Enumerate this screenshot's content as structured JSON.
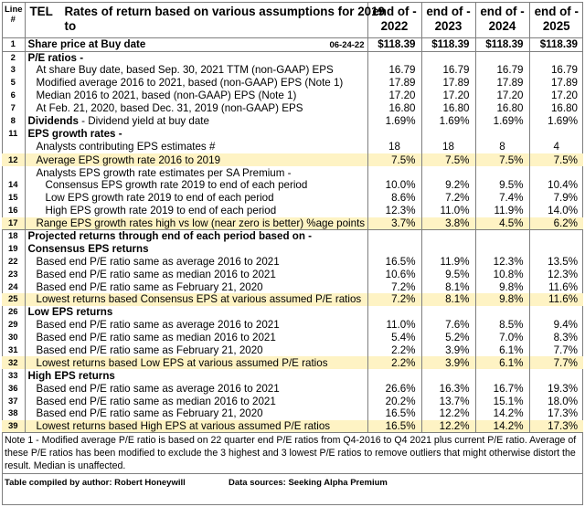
{
  "header": {
    "line_label": "Line #",
    "ticker": "TEL",
    "title_line1": "Rates of return based on various assumptions for 2019",
    "title_line2": "to",
    "columns": [
      {
        "top": "end of -",
        "year": "2022"
      },
      {
        "top": "end of -",
        "year": "2023"
      },
      {
        "top": "end of -",
        "year": "2024"
      },
      {
        "top": "end of -",
        "year": "2025"
      }
    ]
  },
  "rows": [
    {
      "n": "1",
      "label": "Share price at Buy date",
      "date": "06-24-22",
      "v": [
        "$118.39",
        "$118.39",
        "$118.39",
        "$118.39"
      ]
    },
    {
      "n": "2",
      "label": "P/E ratios -",
      "v": [
        "",
        "",
        "",
        ""
      ]
    },
    {
      "n": "3",
      "label": "At share Buy date, based Sep. 30, 2021 TTM (non-GAAP) EPS",
      "v": [
        "16.79",
        "16.79",
        "16.79",
        "16.79"
      ]
    },
    {
      "n": "5",
      "label": "Modified average 2016 to 2021, based (non-GAAP) EPS  (Note 1)",
      "v": [
        "17.89",
        "17.89",
        "17.89",
        "17.89"
      ]
    },
    {
      "n": "6",
      "label": "Median 2016 to 2021, based (non-GAAP) EPS  (Note 1)",
      "v": [
        "17.20",
        "17.20",
        "17.20",
        "17.20"
      ]
    },
    {
      "n": "7",
      "label": "At Feb. 21, 2020, based Dec. 31, 2019 (non-GAAP) EPS",
      "v": [
        "16.80",
        "16.80",
        "16.80",
        "16.80"
      ]
    },
    {
      "n": "8",
      "label": "Dividends",
      "label_extra": " -  Dividend yield at buy date",
      "v": [
        "1.69%",
        "1.69%",
        "1.69%",
        "1.69%"
      ]
    },
    {
      "n": "11",
      "label": "EPS growth rates -",
      "v": [
        "",
        "",
        "",
        ""
      ]
    },
    {
      "n": "",
      "label": "Analysts contributing EPS estimates #",
      "v": [
        "18",
        "18",
        "8",
        "4"
      ]
    },
    {
      "n": "12",
      "label": "Average EPS growth rate 2016 to 2019",
      "v": [
        "7.5%",
        "7.5%",
        "7.5%",
        "7.5%"
      ]
    },
    {
      "n": "",
      "label": "Analysts EPS growth rate estimates per SA Premium -",
      "v": [
        "",
        "",
        "",
        ""
      ]
    },
    {
      "n": "14",
      "label": "Consensus EPS growth rate 2019 to end of each period",
      "v": [
        "10.0%",
        "9.2%",
        "9.5%",
        "10.4%"
      ]
    },
    {
      "n": "15",
      "label": "Low EPS growth rate 2019 to end of each period",
      "v": [
        "8.6%",
        "7.2%",
        "7.4%",
        "7.9%"
      ]
    },
    {
      "n": "16",
      "label": "High EPS growth rate 2019 to end of each period",
      "v": [
        "12.3%",
        "11.0%",
        "11.9%",
        "14.0%"
      ]
    },
    {
      "n": "17",
      "label": "Range EPS growth rates high vs low (near zero is better) %age points",
      "v": [
        "3.7%",
        "3.8%",
        "4.5%",
        "6.2%"
      ]
    },
    {
      "n": "18",
      "label": "Projected returns through end of each period based on -",
      "v": [
        "",
        "",
        "",
        ""
      ]
    },
    {
      "n": "19",
      "label": "Consensus EPS returns",
      "v": [
        "",
        "",
        "",
        ""
      ]
    },
    {
      "n": "22",
      "label": "Based end P/E ratio same as average 2016 to 2021",
      "v": [
        "16.5%",
        "11.9%",
        "12.3%",
        "13.5%"
      ]
    },
    {
      "n": "23",
      "label": "Based end P/E ratio same as median 2016 to 2021",
      "v": [
        "10.6%",
        "9.5%",
        "10.8%",
        "12.3%"
      ]
    },
    {
      "n": "24",
      "label": "Based end P/E ratio same as February 21, 2020",
      "v": [
        "7.2%",
        "8.1%",
        "9.8%",
        "11.6%"
      ]
    },
    {
      "n": "25",
      "label": "Lowest returns based Consensus EPS at various assumed P/E ratios",
      "v": [
        "7.2%",
        "8.1%",
        "9.8%",
        "11.6%"
      ]
    },
    {
      "n": "26",
      "label": "Low EPS returns",
      "v": [
        "",
        "",
        "",
        ""
      ]
    },
    {
      "n": "29",
      "label": "Based end P/E ratio same as average 2016 to 2021",
      "v": [
        "11.0%",
        "7.6%",
        "8.5%",
        "9.4%"
      ]
    },
    {
      "n": "30",
      "label": "Based end P/E ratio same as median 2016 to 2021",
      "v": [
        "5.4%",
        "5.2%",
        "7.0%",
        "8.3%"
      ]
    },
    {
      "n": "31",
      "label": "Based end P/E ratio same as February 21, 2020",
      "v": [
        "2.2%",
        "3.9%",
        "6.1%",
        "7.7%"
      ]
    },
    {
      "n": "32",
      "label": "Lowest returns based Low EPS at various assumed P/E ratios",
      "v": [
        "2.2%",
        "3.9%",
        "6.1%",
        "7.7%"
      ]
    },
    {
      "n": "33",
      "label": "High  EPS returns",
      "v": [
        "",
        "",
        "",
        ""
      ]
    },
    {
      "n": "36",
      "label": "Based end P/E ratio same as average 2016 to 2021",
      "v": [
        "26.6%",
        "16.3%",
        "16.7%",
        "19.3%"
      ]
    },
    {
      "n": "37",
      "label": "Based end P/E ratio same as median 2016 to 2021",
      "v": [
        "20.2%",
        "13.7%",
        "15.1%",
        "18.0%"
      ]
    },
    {
      "n": "38",
      "label": "Based end P/E ratio same as February 21, 2020",
      "v": [
        "16.5%",
        "12.2%",
        "14.2%",
        "17.3%"
      ]
    },
    {
      "n": "39",
      "label": "Lowest returns based High EPS at various assumed P/E ratios",
      "v": [
        "16.5%",
        "12.2%",
        "14.2%",
        "17.3%"
      ]
    }
  ],
  "note": "Note 1 - Modified average P/E ratio is based on 22 quarter end  P/E ratios from Q4-2016 to Q4 2021 plus current P/E ratio. Average of these P/E ratios has been modified to exclude the 3 highest and 3 lowest P/E ratios to remove outliers that might otherwise distort the result. Median is unaffected.",
  "footer": {
    "compiled_by": "Table compiled by author: Robert Honeywill",
    "sources": "Data sources: Seeking Alpha Premium"
  },
  "colors": {
    "highlight": "#fef3c4",
    "border": "#7f7f7f"
  }
}
